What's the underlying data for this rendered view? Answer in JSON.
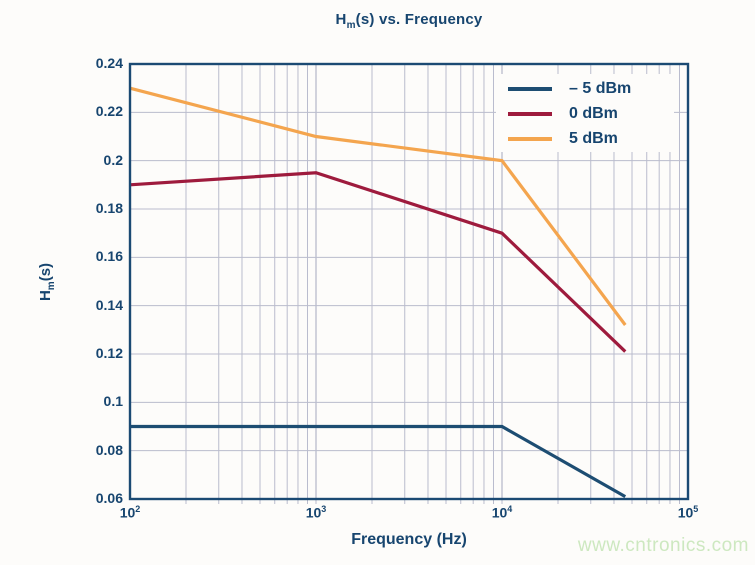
{
  "title": {
    "base": "H",
    "sub": "m",
    "rest": "(s) vs. Frequency"
  },
  "axes": {
    "x_label": "Frequency (Hz)",
    "y_label": {
      "base": "H",
      "sub": "m",
      "rest": "(s)"
    }
  },
  "watermark": "www.cntronics.com",
  "colors": {
    "navy_text": "#17456f",
    "spine": "#1b4a73",
    "grid": "#babccd",
    "background": "#fdfcfa",
    "series_blue": "#1d4d72",
    "series_red": "#9e1b3d",
    "series_orange": "#f4a54e",
    "watermark_green": "#cde8c0"
  },
  "chart_data": {
    "type": "line",
    "title": "Hm(s) vs. Frequency",
    "xlabel": "Frequency (Hz)",
    "ylabel": "Hm(s)",
    "x_scale": "log",
    "xlim": [
      100,
      100000
    ],
    "ylim": [
      0.06,
      0.24
    ],
    "grid": "on",
    "legend_position": "top-right",
    "x_tick_base": "10",
    "x_tick_exponents": [
      2,
      3,
      4,
      5
    ],
    "x_tick_values": [
      100,
      1000,
      10000,
      100000
    ],
    "y_tick_values": [
      0.06,
      0.08,
      0.1,
      0.12,
      0.14,
      0.16,
      0.18,
      0.2,
      0.22,
      0.24
    ],
    "y_tick_labels": [
      "0.06",
      "0.08",
      "0.1",
      "0.12",
      "0.14",
      "0.16",
      "0.18",
      "0.2",
      "0.22",
      "0.24"
    ],
    "series": [
      {
        "name": "– 5 dBm",
        "color": "#1d4d72",
        "x": [
          100,
          10000,
          46000
        ],
        "y": [
          0.09,
          0.09,
          0.061
        ]
      },
      {
        "name": "0 dBm",
        "color": "#9e1b3d",
        "x": [
          100,
          1000,
          10000,
          46000
        ],
        "y": [
          0.19,
          0.195,
          0.17,
          0.121
        ]
      },
      {
        "name": "5 dBm",
        "color": "#f4a54e",
        "x": [
          100,
          1000,
          10000,
          46000
        ],
        "y": [
          0.23,
          0.21,
          0.2,
          0.132
        ]
      }
    ]
  }
}
